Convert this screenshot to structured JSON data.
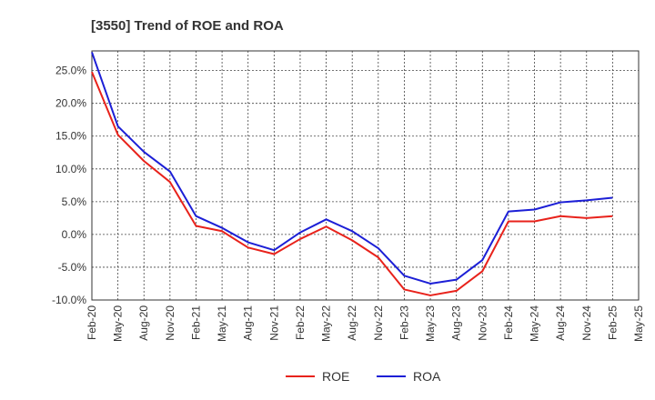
{
  "chart_data": {
    "type": "line",
    "title": "[3550]  Trend of ROE and ROA",
    "x": [
      "Feb-20",
      "May-20",
      "Aug-20",
      "Nov-20",
      "Feb-21",
      "May-21",
      "Aug-21",
      "Nov-21",
      "Feb-22",
      "May-22",
      "Aug-22",
      "Nov-22",
      "Feb-23",
      "May-23",
      "Aug-23",
      "Nov-23",
      "Feb-24",
      "May-24",
      "Aug-24",
      "Nov-24",
      "Feb-25",
      "May-25"
    ],
    "ylim": [
      -10,
      28
    ],
    "yticks": [
      -10,
      -5,
      0,
      5,
      10,
      15,
      20,
      25
    ],
    "ytick_labels": [
      "-10.0%",
      "-5.0%",
      "0.0%",
      "5.0%",
      "10.0%",
      "15.0%",
      "20.0%",
      "25.0%"
    ],
    "grid": true,
    "legend_position": "bottom-center",
    "series": [
      {
        "name": "ROE",
        "color": "#e8221b",
        "values": [
          24.8,
          15.2,
          11.2,
          8.0,
          1.3,
          0.5,
          -2.0,
          -3.0,
          -0.7,
          1.2,
          -0.9,
          -3.5,
          -8.4,
          -9.3,
          -8.6,
          -5.6,
          2.0,
          2.0,
          2.8,
          2.5,
          2.8,
          null
        ]
      },
      {
        "name": "ROA",
        "color": "#1c1fd6",
        "values": [
          27.8,
          16.5,
          12.6,
          9.6,
          2.8,
          1.0,
          -1.2,
          -2.4,
          0.3,
          2.3,
          0.5,
          -2.1,
          -6.3,
          -7.5,
          -6.9,
          -3.9,
          3.5,
          3.8,
          4.9,
          5.2,
          5.6,
          null
        ]
      }
    ]
  }
}
